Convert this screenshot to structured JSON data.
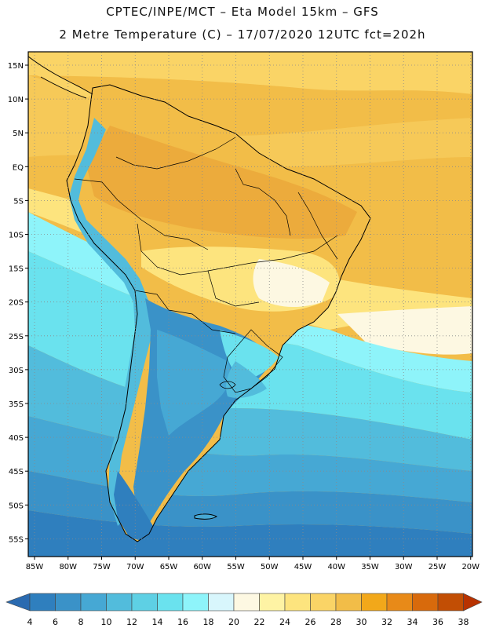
{
  "header": {
    "line1": "CPTEC/INPE/MCT –  Eta Model 15km – GFS",
    "line2": "2 Metre Temperature (C) – 17/07/2020 12UTC fct=202h"
  },
  "map": {
    "lat_labels": [
      "15N",
      "10N",
      "5N",
      "EQ",
      "5S",
      "10S",
      "15S",
      "20S",
      "25S",
      "30S",
      "35S",
      "40S",
      "45S",
      "50S",
      "55S"
    ],
    "lon_labels": [
      "85W",
      "80W",
      "75W",
      "70W",
      "65W",
      "60W",
      "55W",
      "50W",
      "45W",
      "40W",
      "35W",
      "30W",
      "25W",
      "20W"
    ]
  },
  "colorbar": {
    "ticks": [
      "4",
      "6",
      "8",
      "10",
      "12",
      "14",
      "16",
      "18",
      "20",
      "22",
      "24",
      "26",
      "28",
      "30",
      "32",
      "34",
      "36",
      "38"
    ],
    "low_color": "#2a6ab0",
    "high_color": "#b83200",
    "colors": [
      "#2a6db0",
      "#2f7fbe",
      "#3a92c8",
      "#46a8d4",
      "#52bcdc",
      "#5ed0e4",
      "#6ae2ee",
      "#8ef4fa",
      "#d8f6fc",
      "#fdf8e2",
      "#fef3a4",
      "#fde47e",
      "#fad466",
      "#f2bd48",
      "#f2a81a",
      "#e88a18",
      "#d86a0c",
      "#c24e04",
      "#b83200"
    ]
  }
}
